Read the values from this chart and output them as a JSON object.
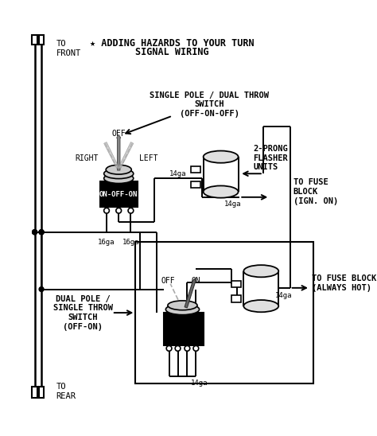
{
  "title_star": "★ ADDING HAZARDS TO YOUR TURN",
  "title_line2": "SIGNAL WIRING",
  "bg_color": "#ffffff",
  "line_color": "#000000",
  "text_color": "#000000",
  "labels": {
    "to_front": "TO\nFRONT",
    "to_rear": "TO\nREAR",
    "single_pole": "SINGLE POLE / DUAL THROW\nSWITCH\n(OFF-ON-OFF)",
    "two_prong": "2-PRONG\nFLASHER\nUNITS",
    "to_fuse_ign": "TO FUSE\nBLOCK\n(IGN. ON)",
    "dual_pole": "DUAL POLE /\nSINGLE THROW\nSWITCH\n(OFF-ON)",
    "to_fuse_hot": "TO FUSE BLOCK\n(ALWAYS HOT)",
    "off_top": "OFF",
    "right_lbl": "RIGHT",
    "left_lbl": "LEFT",
    "on_off_on": "ON-OFF-ON",
    "16ga_l": "16ga",
    "16ga_r": "16ga",
    "14ga_1": "14ga",
    "14ga_2": "14ga",
    "14ga_3": "14ga",
    "14ga_4": "14ga",
    "off_bot": "OFF",
    "on_bot": "ON"
  }
}
